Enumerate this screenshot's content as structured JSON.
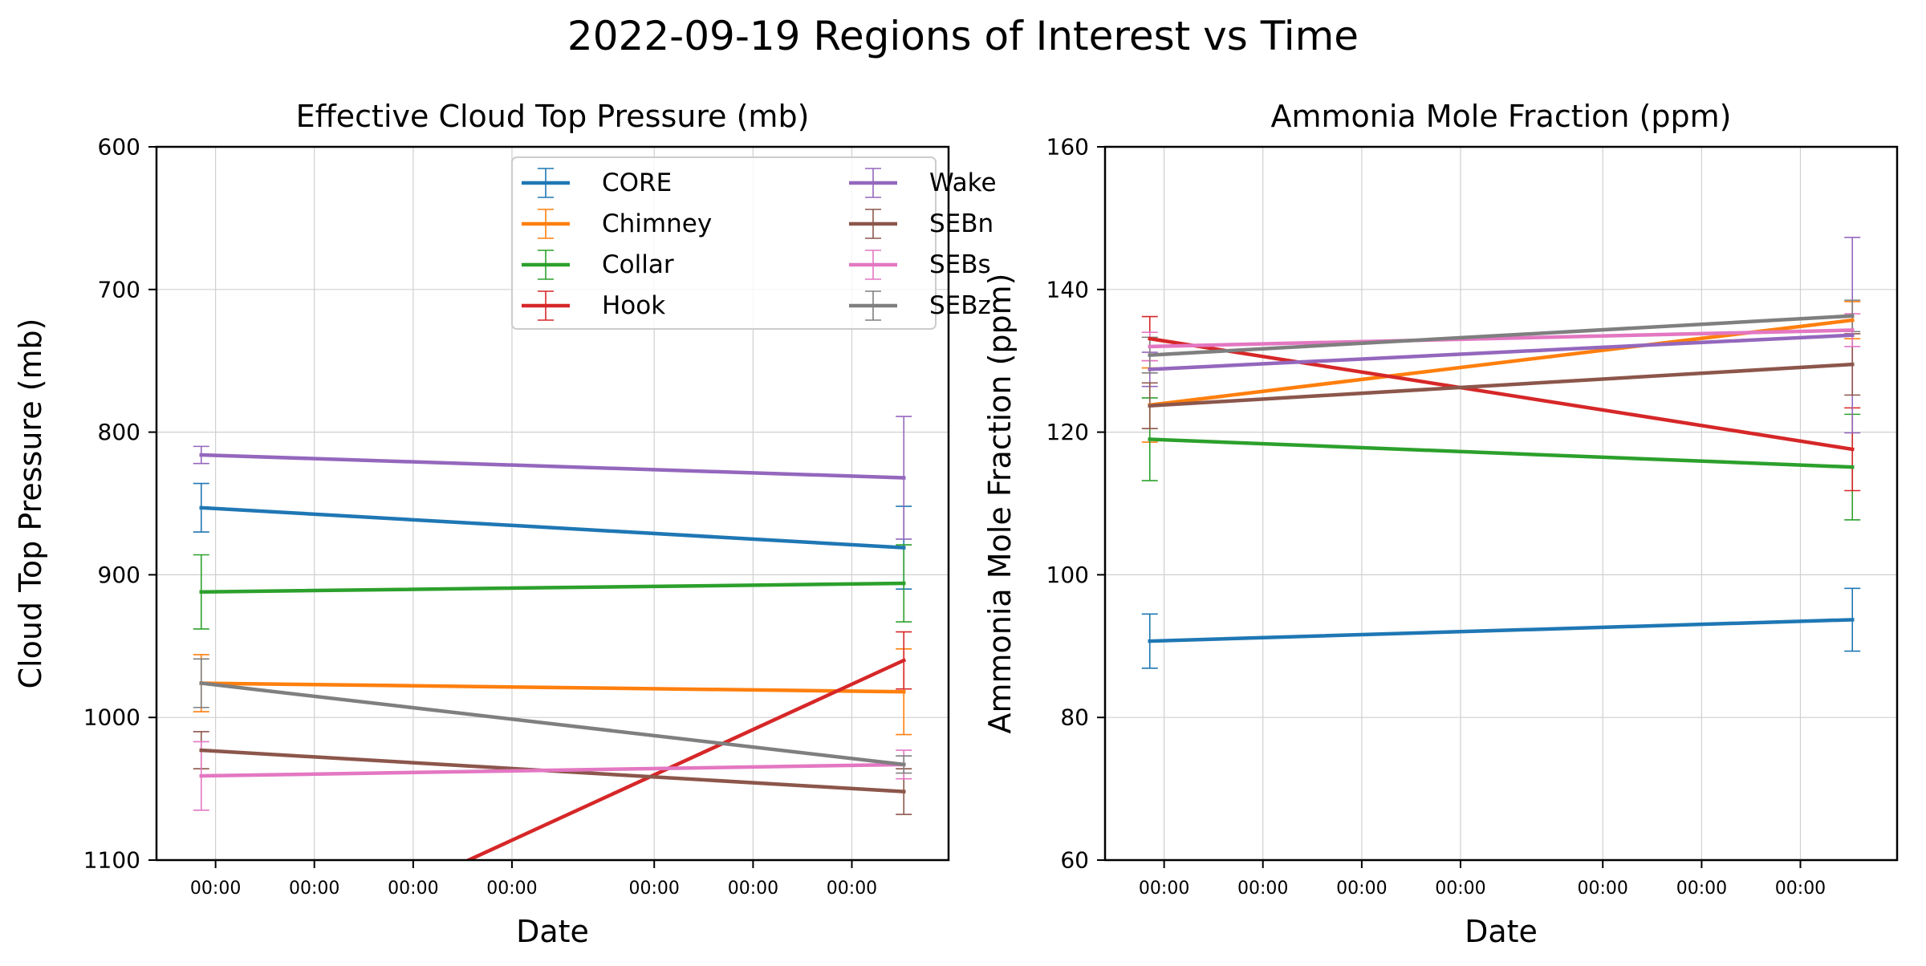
{
  "figure": {
    "suptitle": "2022-09-19 Regions of Interest vs Time"
  },
  "chart_data": [
    {
      "type": "line",
      "title": "Effective Cloud Top Pressure (mb)",
      "xlabel": "Date",
      "ylabel": "Cloud Top Pressure (mb)",
      "ylim": [
        1100,
        600
      ],
      "y_inverted": true,
      "yticks": [
        600,
        700,
        800,
        900,
        1000,
        1100
      ],
      "xticks": [
        "00:00",
        "00:00",
        "00:00",
        "00:00",
        "00:00",
        "00:00",
        "00:00"
      ],
      "grid": true,
      "legend": "top-right",
      "legend_columns": 2,
      "series": [
        {
          "name": "CORE",
          "color": "#1f77b4",
          "values": [
            853,
            881
          ],
          "errors": [
            17,
            29
          ]
        },
        {
          "name": "Chimney",
          "color": "#ff7f0e",
          "values": [
            976,
            982
          ],
          "errors": [
            20,
            30
          ]
        },
        {
          "name": "Collar",
          "color": "#2ca02c",
          "values": [
            912,
            906
          ],
          "errors": [
            26,
            27
          ]
        },
        {
          "name": "Hook",
          "color": "#d62728",
          "values": [
            1186,
            960
          ],
          "errors": [
            0,
            20
          ]
        },
        {
          "name": "Wake",
          "color": "#9467bd",
          "values": [
            816,
            832
          ],
          "errors": [
            6,
            43
          ]
        },
        {
          "name": "SEBn",
          "color": "#8c564b",
          "values": [
            1023,
            1052
          ],
          "errors": [
            13,
            16
          ]
        },
        {
          "name": "SEBs",
          "color": "#e377c2",
          "values": [
            1041,
            1033
          ],
          "errors": [
            24,
            10
          ]
        },
        {
          "name": "SEBz",
          "color": "#7f7f7f",
          "values": [
            976,
            1033
          ],
          "errors": [
            17,
            6
          ]
        }
      ]
    },
    {
      "type": "line",
      "title": "Ammonia Mole Fraction (ppm)",
      "xlabel": "Date",
      "ylabel": "Ammonia Mole Fraction (ppm)",
      "ylim": [
        60,
        160
      ],
      "yticks": [
        60,
        80,
        100,
        120,
        140,
        160
      ],
      "xticks": [
        "00:00",
        "00:00",
        "00:00",
        "00:00",
        "00:00",
        "00:00",
        "00:00"
      ],
      "grid": true,
      "series": [
        {
          "name": "CORE",
          "color": "#1f77b4",
          "values": [
            90.7,
            93.7
          ],
          "errors": [
            3.8,
            4.4
          ]
        },
        {
          "name": "Chimney",
          "color": "#ff7f0e",
          "values": [
            123.8,
            135.7
          ],
          "errors": [
            5.2,
            2.6
          ]
        },
        {
          "name": "Collar",
          "color": "#2ca02c",
          "values": [
            119.0,
            115.1
          ],
          "errors": [
            5.8,
            7.4
          ]
        },
        {
          "name": "Hook",
          "color": "#d62728",
          "values": [
            133.1,
            117.6
          ],
          "errors": [
            3.1,
            5.8
          ]
        },
        {
          "name": "Wake",
          "color": "#9467bd",
          "values": [
            128.8,
            133.6
          ],
          "errors": [
            2.4,
            13.7
          ]
        },
        {
          "name": "SEBn",
          "color": "#8c564b",
          "values": [
            123.7,
            129.5
          ],
          "errors": [
            3.2,
            4.3
          ]
        },
        {
          "name": "SEBs",
          "color": "#e377c2",
          "values": [
            132.0,
            134.3
          ],
          "errors": [
            2.0,
            2.3
          ]
        },
        {
          "name": "SEBz",
          "color": "#7f7f7f",
          "values": [
            130.8,
            136.3
          ],
          "errors": [
            2.5,
            2.2
          ]
        }
      ]
    }
  ]
}
